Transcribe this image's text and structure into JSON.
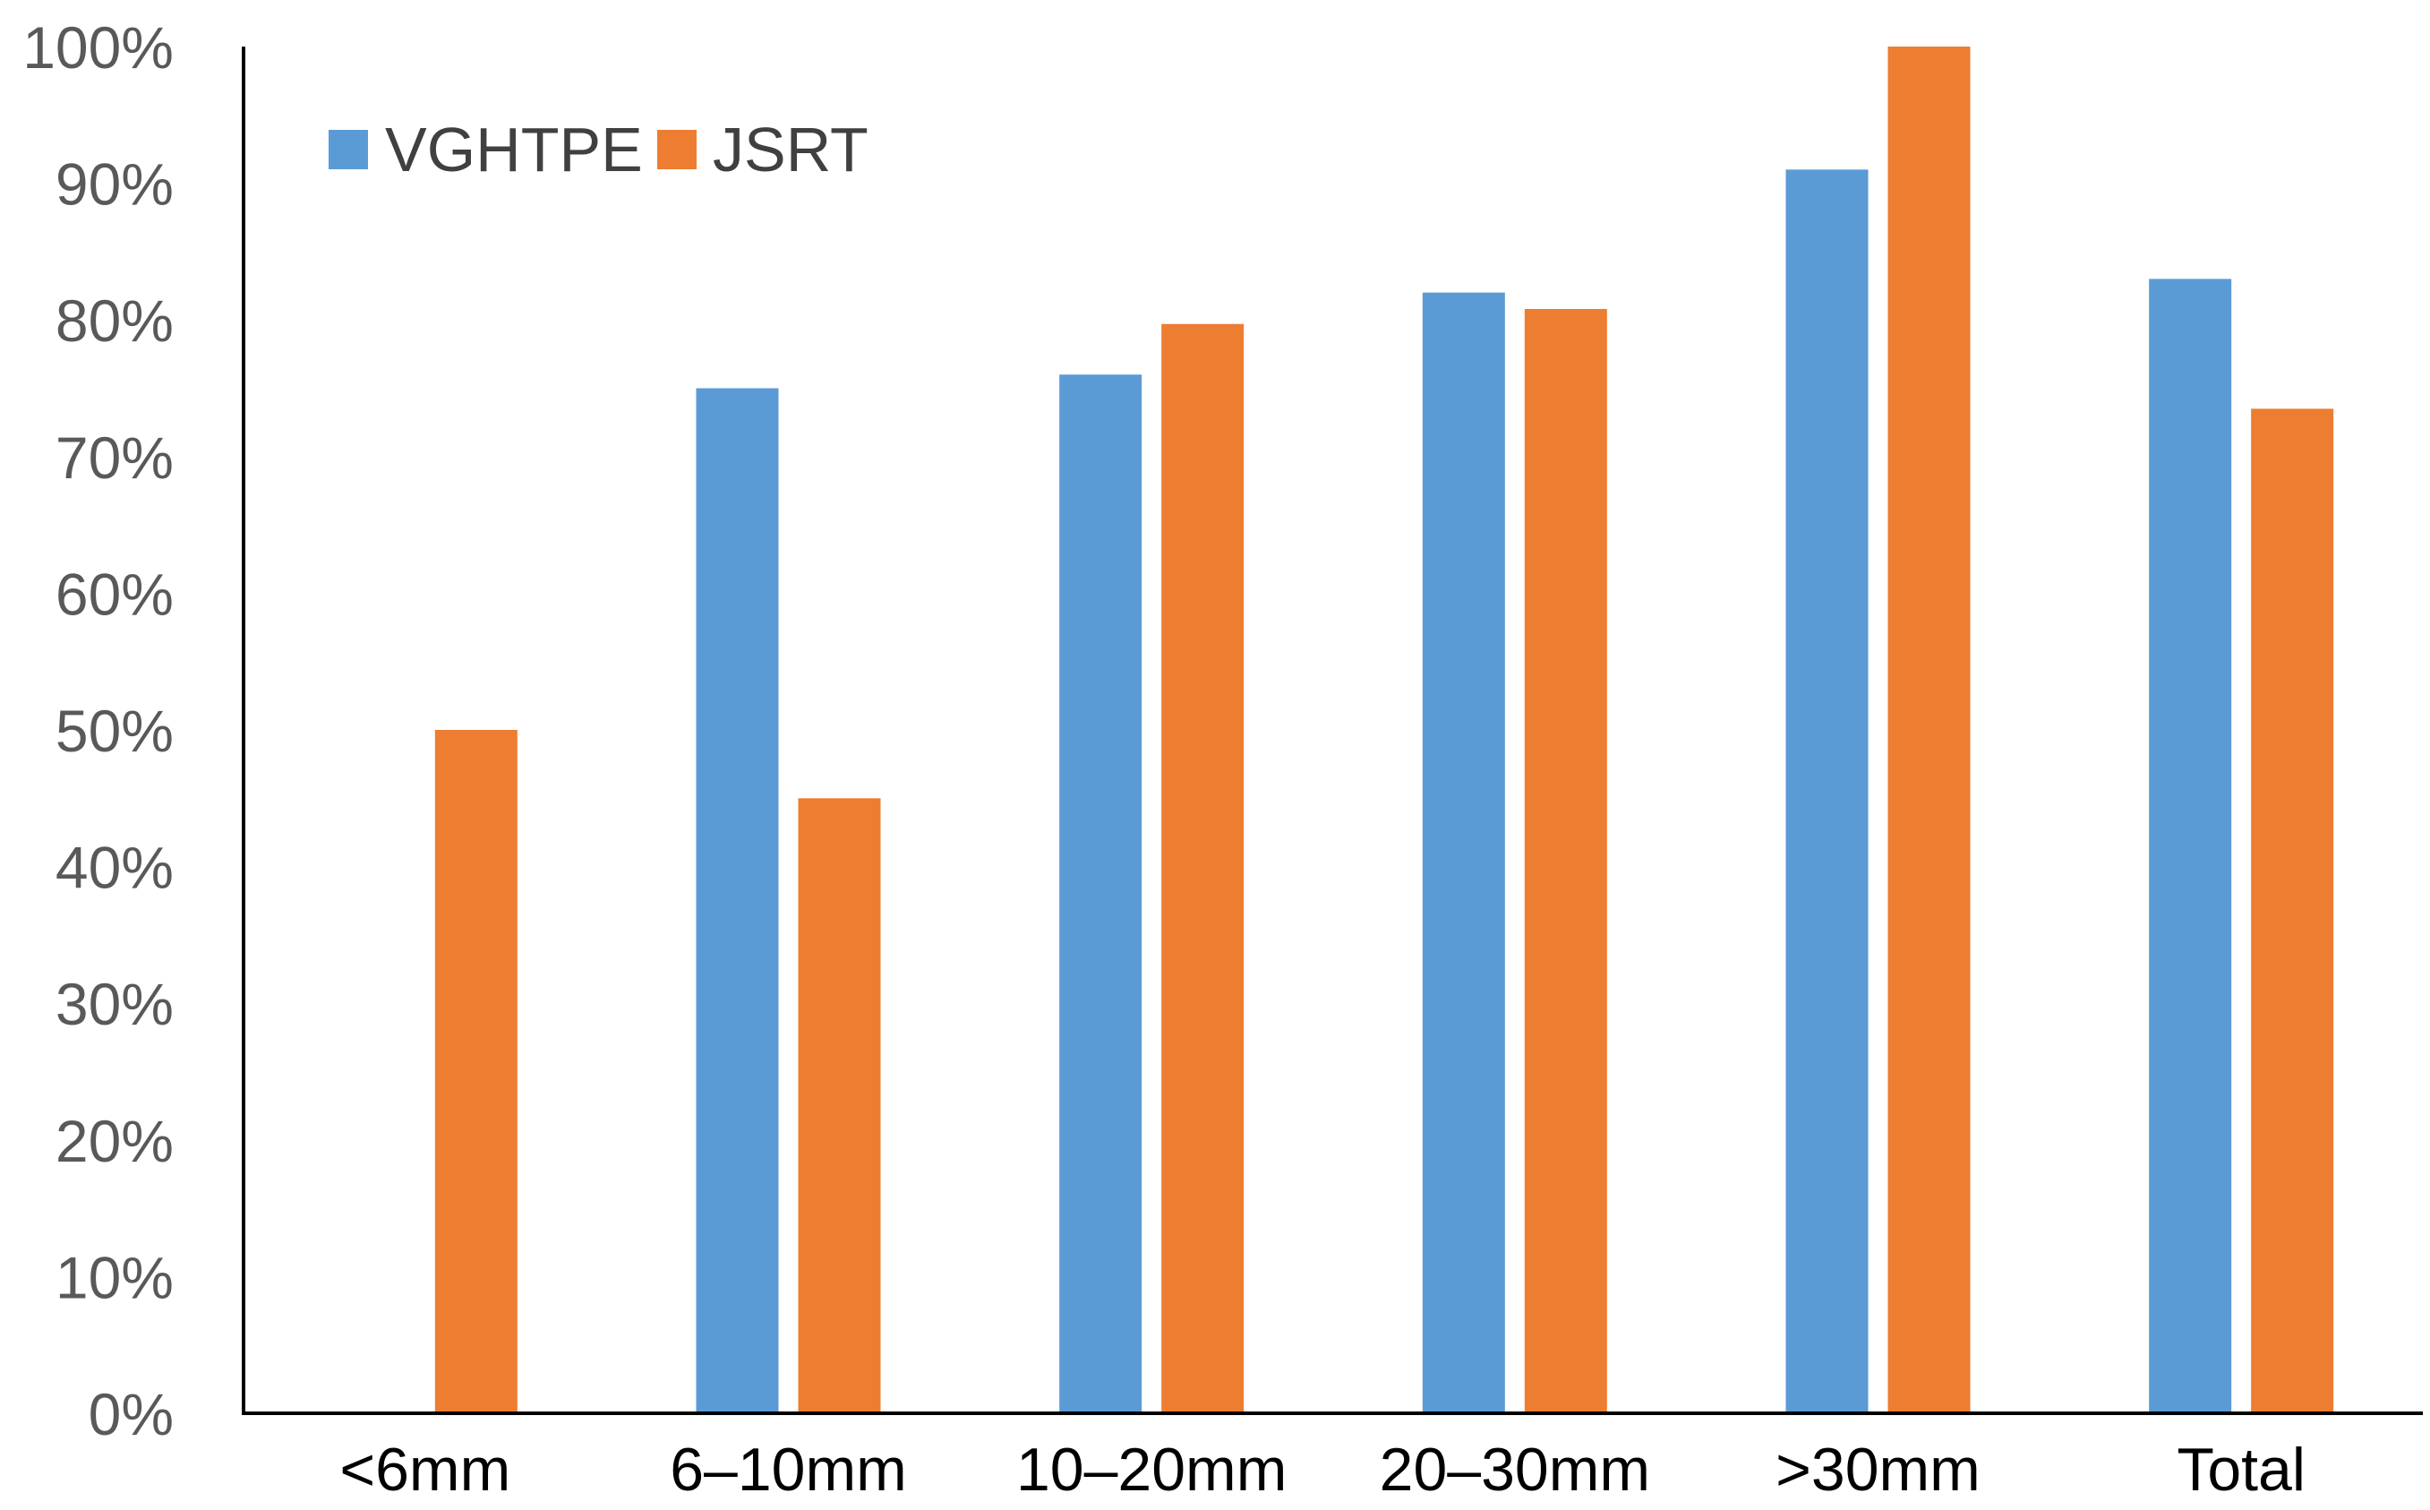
{
  "chart_data": {
    "type": "bar",
    "title": "",
    "xlabel": "",
    "ylabel": "",
    "categories": [
      "<6mm",
      "6–10mm",
      "10–20mm",
      "20–30mm",
      ">30mm",
      "Total"
    ],
    "series": [
      {
        "name": "VGHTPE",
        "color": "#5B9BD5",
        "values": [
          0,
          75,
          76,
          82,
          91,
          83
        ]
      },
      {
        "name": "JSRT",
        "color": "#ED7D31",
        "values": [
          50,
          45,
          79.7,
          80.8,
          100,
          73.5
        ]
      }
    ],
    "ylim": [
      0,
      100
    ],
    "yticks": [
      "0%",
      "10%",
      "20%",
      "30%",
      "40%",
      "50%",
      "60%",
      "70%",
      "80%",
      "90%",
      "100%"
    ],
    "grid": false,
    "legend": "top-left"
  }
}
